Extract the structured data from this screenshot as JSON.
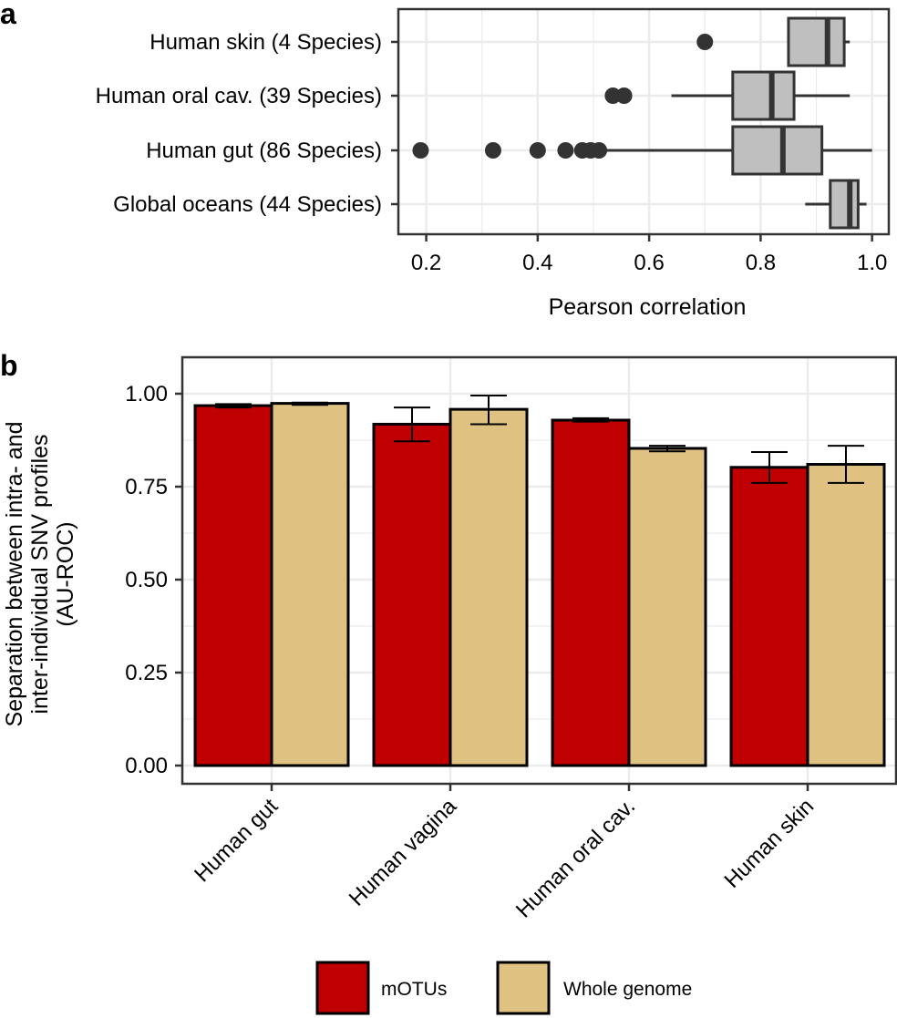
{
  "colors": {
    "box_fill": "#bfbfbf",
    "box_line": "#333333",
    "point": "#333333",
    "grid": "#ebebeb",
    "motus": "#c00000",
    "whole_genome": "#dfc281"
  },
  "chart_data": [
    {
      "type": "box",
      "panel_label": "a",
      "orientation": "horizontal",
      "categories": [
        "Human skin (4 Species)",
        "Human oral cav. (39 Species)",
        "Human gut (86 Species)",
        "Global oceans (44 Species)"
      ],
      "xlabel": "Pearson correlation",
      "xlim": [
        0.15,
        1.03
      ],
      "xticks": [
        0.2,
        0.4,
        0.6,
        0.8,
        1.0
      ],
      "xtick_labels": [
        "0.2",
        "0.4",
        "0.6",
        "0.8",
        "1.0"
      ],
      "grid": true,
      "boxes": [
        {
          "category": "Human skin (4 Species)",
          "whisker_low": 0.85,
          "q1": 0.85,
          "median": 0.92,
          "q3": 0.95,
          "whisker_high": 0.96,
          "outliers": [
            0.7
          ]
        },
        {
          "category": "Human oral cav. (39 Species)",
          "whisker_low": 0.64,
          "q1": 0.75,
          "median": 0.82,
          "q3": 0.86,
          "whisker_high": 0.96,
          "outliers": [
            0.535,
            0.555
          ]
        },
        {
          "category": "Human gut (86 Species)",
          "whisker_low": 0.52,
          "q1": 0.75,
          "median": 0.84,
          "q3": 0.91,
          "whisker_high": 1.0,
          "outliers": [
            0.19,
            0.32,
            0.4,
            0.45,
            0.48,
            0.495,
            0.51
          ]
        },
        {
          "category": "Global oceans (44 Species)",
          "whisker_low": 0.88,
          "q1": 0.925,
          "median": 0.96,
          "q3": 0.975,
          "whisker_high": 0.99,
          "outliers": []
        }
      ]
    },
    {
      "type": "bar",
      "panel_label": "b",
      "categories": [
        "Human gut",
        "Human vagina",
        "Human oral cav.",
        "Human skin"
      ],
      "ylabel_lines": [
        "Separation between intra- and",
        "inter-individual SNV profiles",
        "(AU-ROC)"
      ],
      "ylim": [
        0,
        1.05
      ],
      "yticks": [
        0.0,
        0.25,
        0.5,
        0.75,
        1.0
      ],
      "ytick_labels": [
        "0.00",
        "0.25",
        "0.50",
        "0.75",
        "1.00"
      ],
      "grid": true,
      "legend_position": "bottom",
      "series": [
        {
          "name": "mOTUs",
          "color": "#c00000",
          "values": [
            0.968,
            0.918,
            0.929,
            0.802
          ],
          "err_low": [
            0.963,
            0.872,
            0.925,
            0.76
          ],
          "err_high": [
            0.972,
            0.963,
            0.934,
            0.843
          ]
        },
        {
          "name": "Whole genome",
          "color": "#dfc281",
          "values": [
            0.974,
            0.958,
            0.853,
            0.81
          ],
          "err_low": [
            0.97,
            0.918,
            0.845,
            0.76
          ],
          "err_high": [
            0.976,
            0.995,
            0.86,
            0.86
          ]
        }
      ]
    }
  ]
}
